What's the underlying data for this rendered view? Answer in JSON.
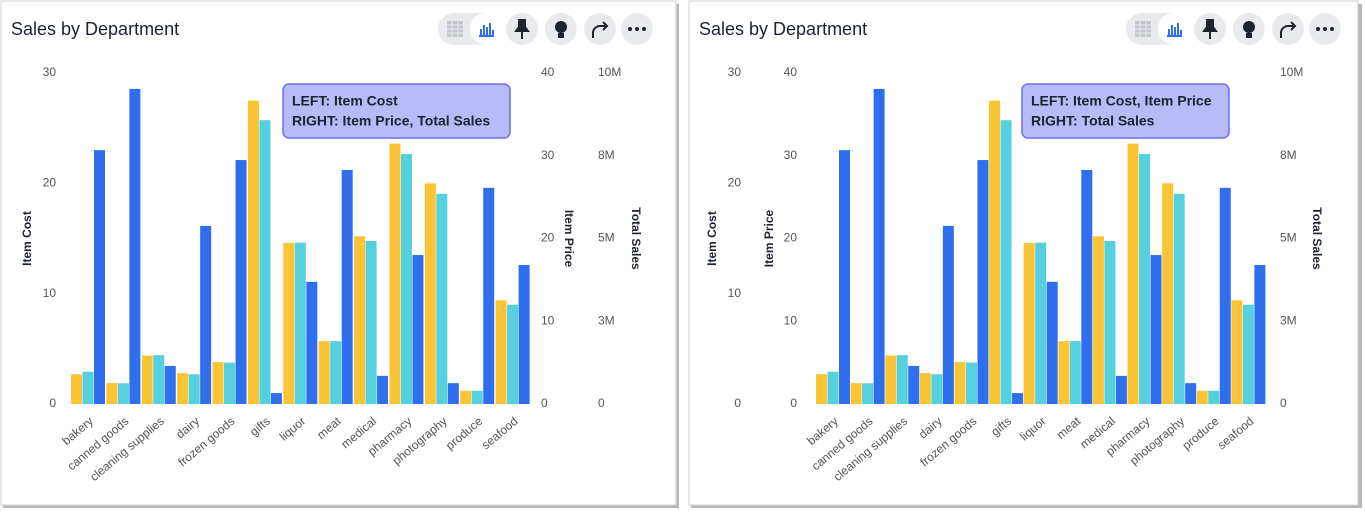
{
  "chart_data": [
    {
      "type": "bar",
      "title": "Sales by Department",
      "annotation": [
        "LEFT: Item Cost",
        "RIGHT: Item Price, Total Sales"
      ],
      "categories": [
        "bakery",
        "canned goods",
        "cleaning supplies",
        "dairy",
        "frozen goods",
        "gifts",
        "liquor",
        "meat",
        "medical",
        "pharmacy",
        "photography",
        "produce",
        "seafood"
      ],
      "series": [
        {
          "name": "Item Cost",
          "color": "#fbc434",
          "axis": "y",
          "values": [
            2.7,
            1.9,
            4.4,
            2.8,
            3.8,
            27.5,
            14.6,
            5.7,
            15.2,
            23.6,
            20.0,
            1.2,
            9.4
          ]
        },
        {
          "name": "Item Price",
          "color": "#55d0de",
          "axis": "y2",
          "values": [
            3.9,
            2.5,
            5.9,
            3.6,
            5.0,
            34.3,
            19.5,
            7.6,
            19.7,
            30.2,
            25.4,
            1.6,
            12.0
          ]
        },
        {
          "name": "Total Sales",
          "color": "#2f6fed",
          "axis": "y3",
          "values": [
            7670000,
            9520000,
            1150000,
            5380000,
            7370000,
            330000,
            3690000,
            7070000,
            850000,
            4500000,
            630000,
            6530000,
            4200000
          ]
        }
      ],
      "ylim": [
        0,
        30
      ],
      "yticks": [
        0,
        10,
        20,
        30
      ],
      "y_position": "left",
      "y2lim": [
        0,
        40
      ],
      "y2ticks": [
        0,
        10,
        20,
        30,
        40
      ],
      "y2_position": "right",
      "y3lim": [
        0,
        10000000
      ],
      "y3ticks": [
        0,
        {
          "value": 2500000,
          "label": "3M"
        },
        {
          "value": 5000000,
          "label": "5M"
        },
        {
          "value": 7500000,
          "label": "8M"
        },
        {
          "value": 10000000,
          "label": "10M"
        }
      ],
      "y3_position": "right",
      "grid": false
    },
    {
      "type": "bar",
      "title": "Sales by Department",
      "annotation": [
        "LEFT: Item Cost, Item Price",
        "RIGHT: Total Sales"
      ],
      "categories": [
        "bakery",
        "canned goods",
        "cleaning supplies",
        "dairy",
        "frozen goods",
        "gifts",
        "liquor",
        "meat",
        "medical",
        "pharmacy",
        "photography",
        "produce",
        "seafood"
      ],
      "series": [
        {
          "name": "Item Cost",
          "color": "#fbc434",
          "axis": "y",
          "values": [
            2.7,
            1.9,
            4.4,
            2.8,
            3.8,
            27.5,
            14.6,
            5.7,
            15.2,
            23.6,
            20.0,
            1.2,
            9.4
          ]
        },
        {
          "name": "Item Price",
          "color": "#55d0de",
          "axis": "y2",
          "values": [
            3.9,
            2.5,
            5.9,
            3.6,
            5.0,
            34.3,
            19.5,
            7.6,
            19.7,
            30.2,
            25.4,
            1.6,
            12.0
          ]
        },
        {
          "name": "Total Sales",
          "color": "#2f6fed",
          "axis": "y3",
          "values": [
            7670000,
            9520000,
            1150000,
            5380000,
            7370000,
            330000,
            3690000,
            7070000,
            850000,
            4500000,
            630000,
            6530000,
            4200000
          ]
        }
      ],
      "ylim": [
        0,
        30
      ],
      "yticks": [
        0,
        10,
        20,
        30
      ],
      "y_position": "left",
      "y2lim": [
        0,
        40
      ],
      "y2ticks": [
        0,
        10,
        20,
        30,
        40
      ],
      "y2_position": "left",
      "y3lim": [
        0,
        10000000
      ],
      "y3ticks": [
        0,
        {
          "value": 2500000,
          "label": "3M"
        },
        {
          "value": 5000000,
          "label": "5M"
        },
        {
          "value": 7500000,
          "label": "8M"
        },
        {
          "value": 10000000,
          "label": "10M"
        }
      ],
      "y3_position": "right",
      "grid": false
    }
  ]
}
